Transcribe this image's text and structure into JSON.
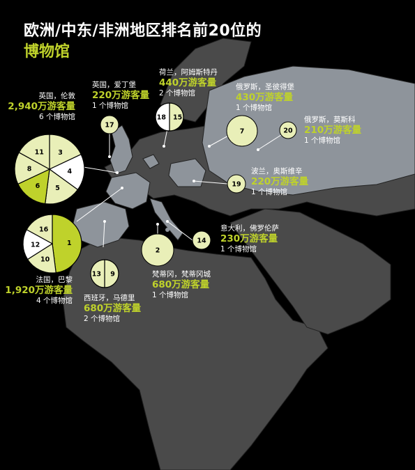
{
  "title_line1": "欧洲/中东/非洲地区排名前20位的",
  "title_line2": "博物馆",
  "colors": {
    "accent": "#bfd22b",
    "pale": "#e9efb8",
    "white": "#ffffff",
    "land_dark": "#4a4a4a",
    "land_highlight": "#8e949b",
    "background": "#000000"
  },
  "cities": [
    {
      "id": "london",
      "place": "英国，伦敦",
      "visitors": "2,940万游客量",
      "museums": "6 个博物馆"
    },
    {
      "id": "edinburgh",
      "place": "英国，爱丁堡",
      "visitors": "220万游客量",
      "museums": "1 个博物馆"
    },
    {
      "id": "amsterdam",
      "place": "荷兰，阿姆斯特丹",
      "visitors": "440万游客量",
      "museums": "2 个博物馆"
    },
    {
      "id": "stpetersburg",
      "place": "俄罗斯，圣彼得堡",
      "visitors": "430万游客量",
      "museums": "1 个博物馆"
    },
    {
      "id": "moscow",
      "place": "俄罗斯，莫斯科",
      "visitors": "210万游客量",
      "museums": "1 个博物馆"
    },
    {
      "id": "krakow",
      "place": "波兰，奥斯维辛",
      "visitors": "220万游客量",
      "museums": "1 个博物馆"
    },
    {
      "id": "florence",
      "place": "意大利，佛罗伦萨",
      "visitors": "230万游客量",
      "museums": "1 个博物馆"
    },
    {
      "id": "vatican",
      "place": "梵蒂冈，梵蒂冈城",
      "visitors": "680万游客量",
      "museums": "1 个博物馆"
    },
    {
      "id": "madrid",
      "place": "西班牙，马德里",
      "visitors": "680万游客量",
      "museums": "2 个博物馆"
    },
    {
      "id": "paris",
      "place": "法国，巴黎",
      "visitors": "1,920万游客量",
      "museums": "4 个博物馆"
    }
  ],
  "pies": {
    "london": [
      {
        "rank": "3",
        "share": 0.18,
        "color": "pale"
      },
      {
        "rank": "4",
        "share": 0.17,
        "color": "white"
      },
      {
        "rank": "5",
        "share": 0.17,
        "color": "pale"
      },
      {
        "rank": "6",
        "share": 0.16,
        "color": "accent"
      },
      {
        "rank": "8",
        "share": 0.15,
        "color": "pale"
      },
      {
        "rank": "11",
        "share": 0.17,
        "color": "pale"
      }
    ],
    "paris": [
      {
        "rank": "1",
        "share": 0.48,
        "color": "accent"
      },
      {
        "rank": "10",
        "share": 0.18,
        "color": "pale"
      },
      {
        "rank": "12",
        "share": 0.17,
        "color": "white"
      },
      {
        "rank": "16",
        "share": 0.17,
        "color": "pale"
      }
    ],
    "amsterdam": [
      {
        "rank": "15",
        "share": 0.5,
        "color": "pale"
      },
      {
        "rank": "18",
        "share": 0.5,
        "color": "white"
      }
    ],
    "madrid": [
      {
        "rank": "9",
        "share": 0.5,
        "color": "pale"
      },
      {
        "rank": "13",
        "share": 0.5,
        "color": "pale"
      }
    ]
  },
  "single_circles": [
    {
      "id": "edinburgh",
      "rank": "17"
    },
    {
      "id": "stpetersburg",
      "rank": "7"
    },
    {
      "id": "moscow",
      "rank": "20"
    },
    {
      "id": "krakow",
      "rank": "19"
    },
    {
      "id": "florence",
      "rank": "14"
    },
    {
      "id": "vatican",
      "rank": "2"
    }
  ]
}
